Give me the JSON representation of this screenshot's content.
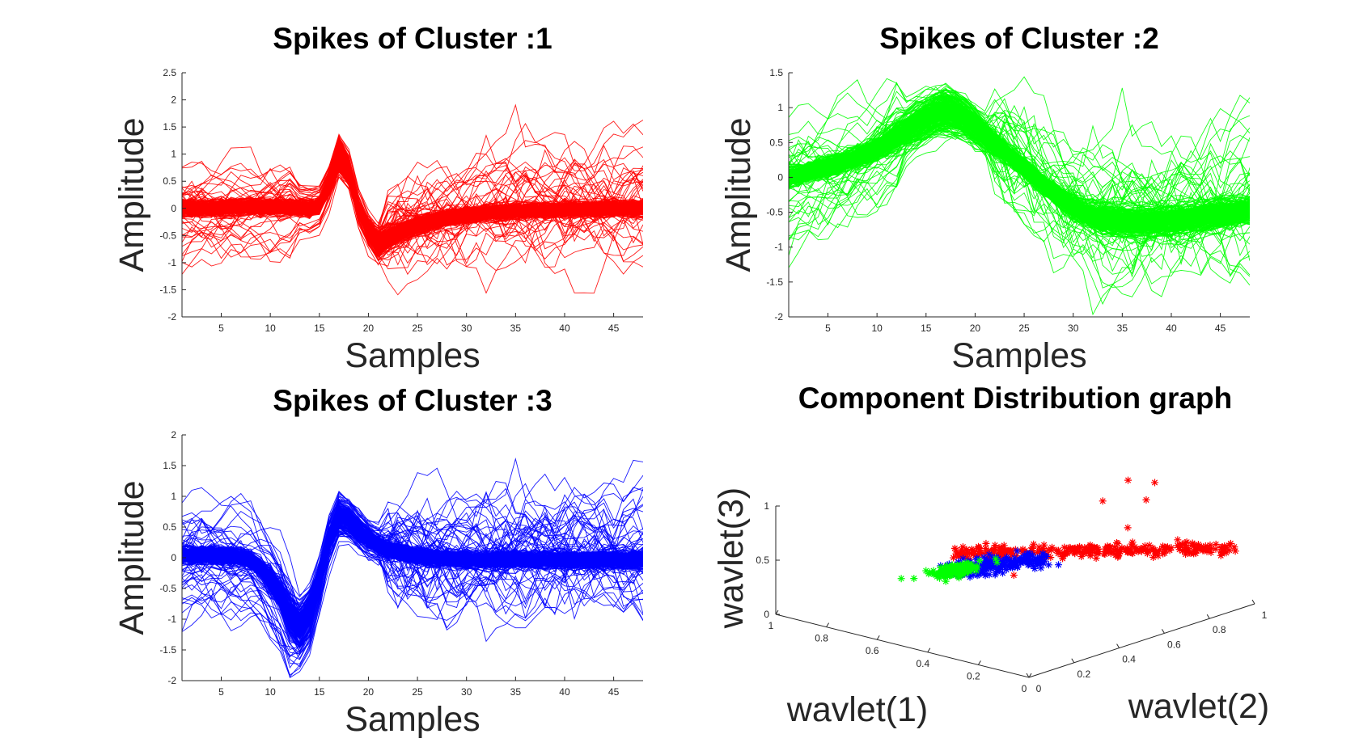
{
  "figure": {
    "background": "#ffffff"
  },
  "chart_data": [
    {
      "type": "line",
      "title": "Spikes of Cluster :1",
      "xlabel": "Samples",
      "ylabel": "Amplitude",
      "xlim": [
        1,
        48
      ],
      "ylim": [
        -2,
        2.5
      ],
      "xticks": [
        5,
        10,
        15,
        20,
        25,
        30,
        35,
        40,
        45
      ],
      "yticks": [
        -2,
        -1.5,
        -1,
        -0.5,
        0,
        0.5,
        1,
        1.5,
        2,
        2.5
      ],
      "color": "#ff0000",
      "series_count_estimate": 300,
      "mean_waveform": [
        0,
        0,
        0,
        0,
        0.01,
        0.02,
        0.02,
        0.03,
        0.03,
        0.03,
        0.02,
        0.02,
        0.02,
        0,
        0.05,
        0.45,
        1.0,
        0.7,
        0,
        -0.4,
        -0.65,
        -0.55,
        -0.45,
        -0.38,
        -0.32,
        -0.27,
        -0.22,
        -0.18,
        -0.15,
        -0.12,
        -0.1,
        -0.08,
        -0.07,
        -0.06,
        -0.05,
        -0.04,
        -0.03,
        -0.03,
        -0.02,
        -0.02,
        -0.01,
        -0.01,
        -0.01,
        0,
        0,
        0,
        0,
        0
      ]
    },
    {
      "type": "line",
      "title": "Spikes of Cluster :2",
      "xlabel": "Samples",
      "ylabel": "Amplitude",
      "xlim": [
        1,
        48
      ],
      "ylim": [
        -2,
        1.5
      ],
      "xticks": [
        5,
        10,
        15,
        20,
        25,
        30,
        35,
        40,
        45
      ],
      "yticks": [
        -2,
        -1.5,
        -1,
        -0.5,
        0,
        0.5,
        1,
        1.5
      ],
      "color": "#00ff00",
      "series_count_estimate": 300,
      "mean_waveform": [
        0.0,
        0.04,
        0.08,
        0.12,
        0.16,
        0.2,
        0.25,
        0.3,
        0.36,
        0.43,
        0.51,
        0.6,
        0.69,
        0.78,
        0.86,
        0.93,
        0.98,
        0.94,
        0.85,
        0.74,
        0.62,
        0.5,
        0.38,
        0.26,
        0.14,
        0.02,
        -0.1,
        -0.22,
        -0.33,
        -0.42,
        -0.5,
        -0.56,
        -0.6,
        -0.62,
        -0.63,
        -0.64,
        -0.64,
        -0.64,
        -0.63,
        -0.62,
        -0.61,
        -0.59,
        -0.57,
        -0.55,
        -0.53,
        -0.51,
        -0.49,
        -0.47
      ]
    },
    {
      "type": "line",
      "title": "Spikes of Cluster :3",
      "xlabel": "Samples",
      "ylabel": "Amplitude",
      "xlim": [
        1,
        48
      ],
      "ylim": [
        -2,
        2
      ],
      "xticks": [
        5,
        10,
        15,
        20,
        25,
        30,
        35,
        40,
        45
      ],
      "yticks": [
        -2,
        -1.5,
        -1,
        -0.5,
        0,
        0.5,
        1,
        1.5,
        2
      ],
      "color": "#0000ff",
      "series_count_estimate": 300,
      "mean_waveform": [
        0.05,
        0.05,
        0.05,
        0.05,
        0.04,
        0.03,
        0.01,
        -0.05,
        -0.15,
        -0.35,
        -0.6,
        -0.95,
        -1.15,
        -0.9,
        -0.35,
        0.3,
        0.7,
        0.62,
        0.45,
        0.32,
        0.22,
        0.15,
        0.1,
        0.06,
        0.03,
        0.01,
        0,
        -0.01,
        -0.02,
        -0.02,
        -0.03,
        -0.03,
        -0.03,
        -0.03,
        -0.03,
        -0.03,
        -0.03,
        -0.03,
        -0.03,
        -0.03,
        -0.03,
        -0.03,
        -0.03,
        -0.03,
        -0.03,
        -0.03,
        -0.03,
        -0.03
      ]
    },
    {
      "type": "scatter",
      "subtype": "scatter3d",
      "title": "Component Distribution graph",
      "xlabel": "wavlet(1)",
      "ylabel": "wavlet(2)",
      "zlabel": "wavlet(3)",
      "xlim": [
        0,
        1
      ],
      "ylim": [
        0,
        1
      ],
      "zlim": [
        0,
        1
      ],
      "xticks": [
        0,
        0.2,
        0.4,
        0.6,
        0.8,
        1
      ],
      "yticks": [
        0,
        0.2,
        0.4,
        0.6,
        0.8,
        1
      ],
      "zticks": [
        0,
        0.5,
        1
      ],
      "marker": "*",
      "clusters": [
        {
          "name": "Cluster 1",
          "color": "#ff0000",
          "center": [
            0.3,
            0.75,
            0.55
          ],
          "spread": "elongated band",
          "outliers": [
            [
              0.05,
              0.45,
              0.9
            ],
            [
              0.1,
              0.55,
              0.95
            ],
            [
              0.25,
              0.8,
              0.95
            ],
            [
              0.35,
              0.95,
              0.95
            ],
            [
              0.5,
              1.0,
              0.85
            ],
            [
              0.6,
              1.0,
              0.6
            ],
            [
              0.55,
              0.55,
              0.25
            ]
          ]
        },
        {
          "name": "Cluster 2",
          "color": "#00ff00",
          "center": [
            0.78,
            0.55,
            0.18
          ],
          "spread": "compact blob",
          "outliers": [
            [
              0.75,
              0.7,
              0.15
            ],
            [
              0.8,
              0.75,
              0.12
            ],
            [
              0.9,
              0.5,
              0.05
            ],
            [
              0.95,
              0.5,
              0.02
            ]
          ]
        },
        {
          "name": "Cluster 3",
          "color": "#0000ff",
          "center": [
            0.55,
            0.5,
            0.3
          ],
          "spread": "compact blob",
          "outliers": []
        }
      ]
    }
  ]
}
